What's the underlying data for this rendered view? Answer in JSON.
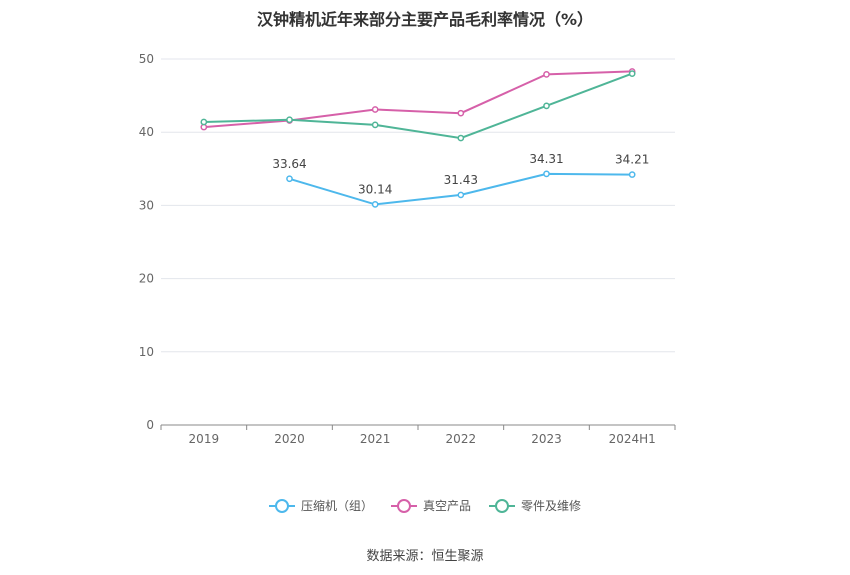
{
  "chart_data": {
    "type": "line",
    "title": "汉钟精机近年来部分主要产品毛利率情况（%）",
    "categories": [
      "2019",
      "2020",
      "2021",
      "2022",
      "2023",
      "2024H1"
    ],
    "ylim": [
      0,
      50
    ],
    "yticks": [
      0,
      10,
      20,
      30,
      40,
      50
    ],
    "grid": true,
    "legend_position": "bottom",
    "series": [
      {
        "name": "压缩机（组）",
        "color": "#4db8ec",
        "values": [
          null,
          33.64,
          30.14,
          31.43,
          34.31,
          34.21
        ],
        "labels": [
          "",
          "33.64",
          "30.14",
          "31.43",
          "34.31",
          "34.21"
        ]
      },
      {
        "name": "真空产品",
        "color": "#d660a9",
        "values": [
          40.7,
          41.6,
          43.1,
          42.6,
          47.9,
          48.3
        ]
      },
      {
        "name": "零件及维修",
        "color": "#4fb597",
        "values": [
          41.4,
          41.7,
          41.0,
          39.2,
          43.6,
          48.0
        ]
      }
    ]
  },
  "source": "数据来源：恒生聚源"
}
